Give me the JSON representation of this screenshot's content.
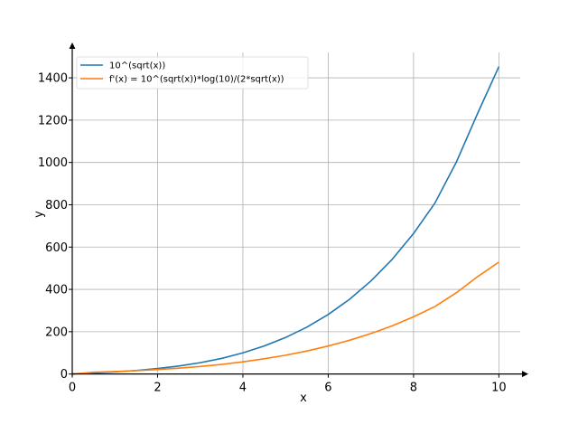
{
  "chart_data": {
    "type": "line",
    "xlabel": "x",
    "ylabel": "y",
    "xlim": [
      0,
      10.5
    ],
    "ylim": [
      -10,
      1520
    ],
    "xticks": [
      0,
      2,
      4,
      6,
      8,
      10
    ],
    "yticks": [
      0,
      200,
      400,
      600,
      800,
      1000,
      1200,
      1400
    ],
    "grid": true,
    "legend_position": "top-left",
    "x": [
      0.0,
      0.5,
      1.0,
      1.5,
      2.0,
      2.5,
      3.0,
      3.5,
      4.0,
      4.5,
      5.0,
      5.5,
      6.0,
      6.5,
      7.0,
      7.5,
      8.0,
      8.5,
      9.0,
      9.5,
      10.0
    ],
    "series": [
      {
        "name": "10^(sqrt(x))",
        "color": "#1f77b4",
        "values": [
          1.0,
          5.1,
          10.0,
          16.7,
          25.9,
          37.9,
          53.5,
          73.7,
          100.0,
          132.5,
          172.5,
          221.7,
          281.4,
          353.3,
          439.5,
          542.2,
          664.1,
          807.6,
          1000.0,
          1231.0,
          1453.0
        ]
      },
      {
        "name": "f'(x) = 10^(sqrt(x))*log(10)/(2*sqrt(x))",
        "color": "#ff7f0e",
        "values": [
          0.0,
          8.3,
          11.5,
          15.7,
          21.1,
          27.6,
          35.6,
          45.4,
          57.6,
          71.9,
          88.8,
          108.8,
          132.3,
          159.6,
          191.2,
          227.9,
          270.4,
          318.9,
          383.8,
          460.0,
          529.0
        ]
      }
    ]
  }
}
